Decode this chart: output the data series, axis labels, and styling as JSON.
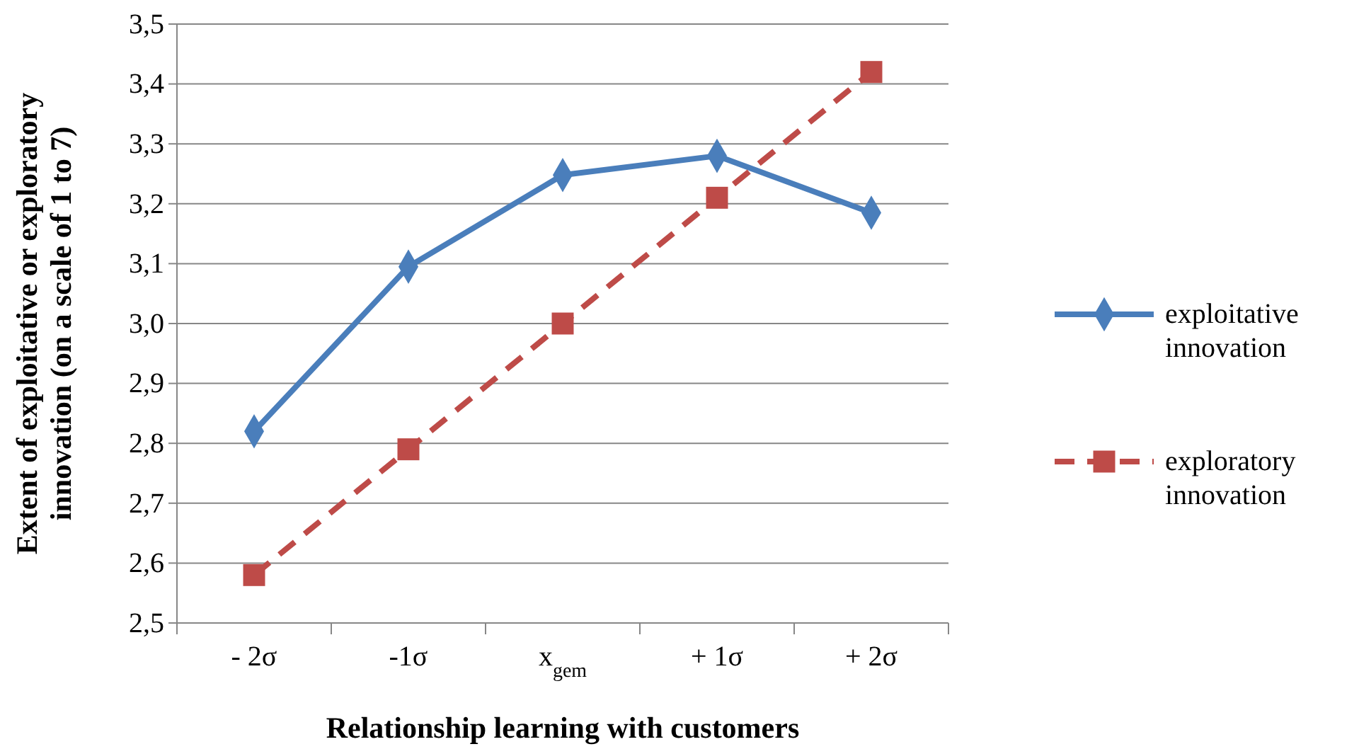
{
  "chart_data": {
    "type": "line",
    "xlabel": "Relationship learning with customers",
    "ylabel": "Extent of exploitative or exploratory innovation (on a scale of 1 to 7)",
    "categories": [
      "- 2σ",
      "-1σ",
      "x$_{gem}$",
      "+ 1σ",
      "+ 2σ"
    ],
    "series": [
      {
        "name": "exploitative innovation",
        "color": "#4a7ebb",
        "values": [
          2.82,
          3.095,
          3.248,
          3.28,
          3.185
        ],
        "marker": "diamond",
        "line_style": "solid"
      },
      {
        "name": "exploratory innovation",
        "color": "#be4b48",
        "values": [
          2.58,
          2.79,
          3.0,
          3.21,
          3.42
        ],
        "marker": "square",
        "line_style": "dashed"
      }
    ],
    "ylim": [
      2.5,
      3.5
    ],
    "yticks": [
      {
        "value": 2.5,
        "label": "2,5"
      },
      {
        "value": 2.6,
        "label": "2,6"
      },
      {
        "value": 2.7,
        "label": "2,7"
      },
      {
        "value": 2.8,
        "label": "2,8"
      },
      {
        "value": 2.9,
        "label": "2,9"
      },
      {
        "value": 3.0,
        "label": "3,0"
      },
      {
        "value": 3.1,
        "label": "3,1"
      },
      {
        "value": 3.2,
        "label": "3,2"
      },
      {
        "value": 3.3,
        "label": "3,3"
      },
      {
        "value": 3.4,
        "label": "3,4"
      },
      {
        "value": 3.5,
        "label": "3,5"
      }
    ],
    "grid": "y",
    "legend": "right"
  }
}
